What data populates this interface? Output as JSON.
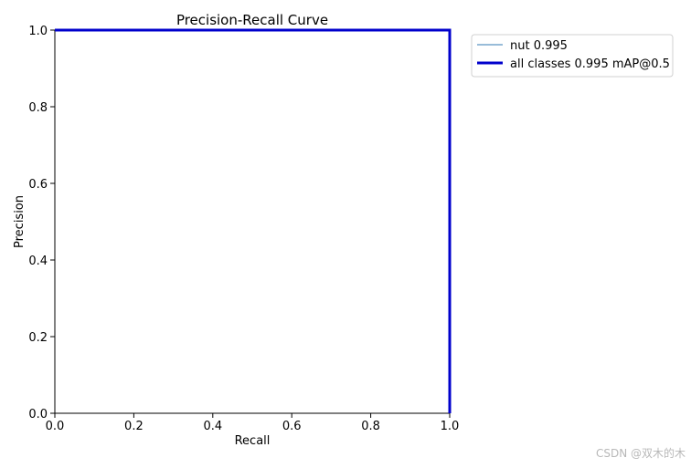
{
  "chart_data": {
    "type": "line",
    "title": "Precision-Recall Curve",
    "xlabel": "Recall",
    "ylabel": "Precision",
    "xlim": [
      0.0,
      1.0
    ],
    "ylim": [
      0.0,
      1.0
    ],
    "xticks": [
      "0.0",
      "0.2",
      "0.4",
      "0.6",
      "0.8",
      "1.0"
    ],
    "yticks": [
      "0.0",
      "0.2",
      "0.4",
      "0.6",
      "0.8",
      "1.0"
    ],
    "grid": false,
    "legend_position": "outside-top-right",
    "series": [
      {
        "name": "nut 0.995",
        "color": "#5b95c2",
        "x": [
          0.0,
          1.0,
          1.0
        ],
        "y": [
          1.0,
          1.0,
          0.0
        ]
      },
      {
        "name": "all classes 0.995 mAP@0.5",
        "color": "#0000cc",
        "x": [
          0.0,
          1.0,
          1.0
        ],
        "y": [
          1.0,
          1.0,
          0.0
        ]
      }
    ]
  },
  "watermark": "CSDN @双木的木"
}
